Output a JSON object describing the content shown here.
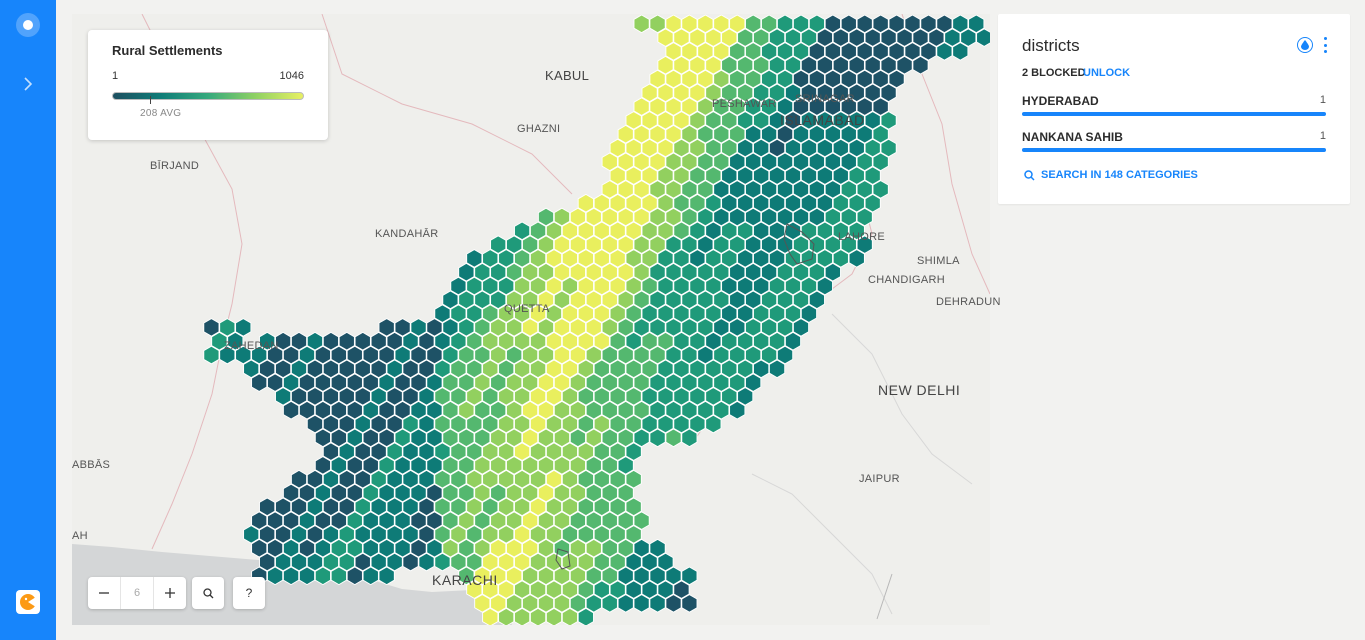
{
  "legend": {
    "title": "Rural Settlements",
    "min": "1",
    "max": "1046",
    "avg": "208 AVG",
    "gradient_colors": [
      "#1d4f60",
      "#0f7c78",
      "#36a97d",
      "#8fd163",
      "#e8f063"
    ]
  },
  "panel": {
    "title": "districts",
    "blocked": "2 BLOCKED",
    "unlock": "UNLOCK",
    "categories": [
      {
        "name": "HYDERABAD",
        "count": "1"
      },
      {
        "name": "NANKANA SAHIB",
        "count": "1"
      }
    ],
    "search": "SEARCH IN 148 CATEGORIES"
  },
  "zoom": {
    "level": "6",
    "help": "?"
  },
  "cities": [
    {
      "name": "KABUL"
    },
    {
      "name": "PESHAWAR"
    },
    {
      "name": "SRINAGAR"
    },
    {
      "name": "ISLAMABAD"
    },
    {
      "name": "GHAZNI"
    },
    {
      "name": "BĪRJAND"
    },
    {
      "name": "KANDAHĀR"
    },
    {
      "name": "LAHORE"
    },
    {
      "name": "SHIMLA"
    },
    {
      "name": "CHANDIGARH"
    },
    {
      "name": "DEHRADUN"
    },
    {
      "name": "QUETTA"
    },
    {
      "name": "ZAHEDAN"
    },
    {
      "name": "NEW DELHI"
    },
    {
      "name": "JAIPUR"
    },
    {
      "name": "ABBĀS"
    },
    {
      "name": "AH"
    },
    {
      "name": "KARACHI"
    }
  ],
  "hex_palette": [
    "#1e5266",
    "#0e7b77",
    "#1f9a7a",
    "#54b86f",
    "#92d05f",
    "#e9ef5e"
  ],
  "brand_color": "#1785fb"
}
